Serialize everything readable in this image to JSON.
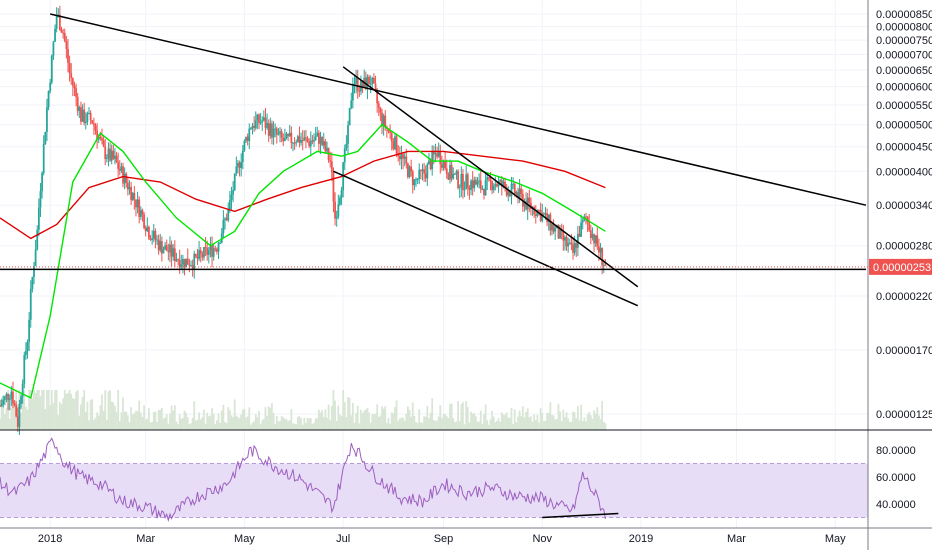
{
  "colors": {
    "up": "#26a69a",
    "down": "#ef5350",
    "ma_fast": "#00e600",
    "ma_slow": "#e00000",
    "trendline": "#000000",
    "rsi_line": "#9c5fbf",
    "rsi_band": "#e8ddf7",
    "rsi_band_edge": "#b39ddb",
    "price_badge": "#ef5350",
    "volume": "#d9e6d6",
    "volume_ma": "#f4b183",
    "grid": "#f0f3fa",
    "axis_text": "#131722",
    "separator": "#131722"
  },
  "chart_data": [
    {
      "type": "candlestick",
      "title": "",
      "y_scale": "log",
      "y_ticks": [
        "0.00000850",
        "0.00000800",
        "0.00000750",
        "0.00000700",
        "0.00000650",
        "0.00000600",
        "0.00000550",
        "0.00000500",
        "0.00000450",
        "0.00000400",
        "0.00000340",
        "0.00000280",
        "0.00000220",
        "0.00000170",
        "0.00000125"
      ],
      "y_tick_values": [
        8.5e-06,
        8e-06,
        7.5e-06,
        7e-06,
        6.5e-06,
        6e-06,
        5.5e-06,
        5e-06,
        4.5e-06,
        4e-06,
        3.4e-06,
        2.8e-06,
        2.2e-06,
        1.7e-06,
        1.25e-06
      ],
      "x_ticks": [
        "2018",
        "Mar",
        "May",
        "Jul",
        "Sep",
        "Nov",
        "2019",
        "Mar",
        "May"
      ],
      "x_tick_dates": [
        "2018-01-01",
        "2018-03-01",
        "2018-05-01",
        "2018-07-01",
        "2018-09-01",
        "2018-11-01",
        "2019-01-01",
        "2019-03-01",
        "2019-05-01"
      ],
      "last_price": "0.00000253",
      "last_price_value": 2.53e-06,
      "date_range": [
        "2017-12-01",
        "2018-12-10"
      ],
      "price_path": [
        [
          "2017-12-01",
          1.3e-06
        ],
        [
          "2017-12-08",
          1.4e-06
        ],
        [
          "2017-12-12",
          1.2e-06
        ],
        [
          "2017-12-18",
          1.8e-06
        ],
        [
          "2017-12-24",
          3e-06
        ],
        [
          "2017-12-28",
          4.5e-06
        ],
        [
          "2018-01-02",
          6.8e-06
        ],
        [
          "2018-01-05",
          8.5e-06
        ],
        [
          "2018-01-09",
          7.8e-06
        ],
        [
          "2018-01-13",
          6.4e-06
        ],
        [
          "2018-01-20",
          5.2e-06
        ],
        [
          "2018-01-27",
          5.1e-06
        ],
        [
          "2018-02-03",
          4.4e-06
        ],
        [
          "2018-02-10",
          4.2e-06
        ],
        [
          "2018-02-17",
          3.8e-06
        ],
        [
          "2018-02-24",
          3.4e-06
        ],
        [
          "2018-03-03",
          3e-06
        ],
        [
          "2018-03-10",
          2.8e-06
        ],
        [
          "2018-03-17",
          2.7e-06
        ],
        [
          "2018-03-24",
          2.6e-06
        ],
        [
          "2018-03-31",
          2.6e-06
        ],
        [
          "2018-04-07",
          2.7e-06
        ],
        [
          "2018-04-14",
          2.8e-06
        ],
        [
          "2018-04-21",
          3.3e-06
        ],
        [
          "2018-04-28",
          4.2e-06
        ],
        [
          "2018-05-05",
          5e-06
        ],
        [
          "2018-05-12",
          5.1e-06
        ],
        [
          "2018-05-19",
          4.8e-06
        ],
        [
          "2018-05-26",
          4.6e-06
        ],
        [
          "2018-06-02",
          4.7e-06
        ],
        [
          "2018-06-09",
          4.6e-06
        ],
        [
          "2018-06-16",
          4.7e-06
        ],
        [
          "2018-06-23",
          4.2e-06
        ],
        [
          "2018-06-26",
          3.2e-06
        ],
        [
          "2018-06-30",
          3.8e-06
        ],
        [
          "2018-07-04",
          4.8e-06
        ],
        [
          "2018-07-07",
          6.2e-06
        ],
        [
          "2018-07-12",
          6e-06
        ],
        [
          "2018-07-18",
          6.2e-06
        ],
        [
          "2018-07-24",
          5.2e-06
        ],
        [
          "2018-07-31",
          4.7e-06
        ],
        [
          "2018-08-07",
          4.2e-06
        ],
        [
          "2018-08-14",
          3.8e-06
        ],
        [
          "2018-08-21",
          4e-06
        ],
        [
          "2018-08-28",
          4.4e-06
        ],
        [
          "2018-09-04",
          4e-06
        ],
        [
          "2018-09-11",
          3.8e-06
        ],
        [
          "2018-09-18",
          3.8e-06
        ],
        [
          "2018-09-25",
          3.7e-06
        ],
        [
          "2018-10-02",
          3.8e-06
        ],
        [
          "2018-10-09",
          3.7e-06
        ],
        [
          "2018-10-16",
          3.6e-06
        ],
        [
          "2018-10-23",
          3.4e-06
        ],
        [
          "2018-10-30",
          3.3e-06
        ],
        [
          "2018-11-06",
          3.1e-06
        ],
        [
          "2018-11-13",
          2.9e-06
        ],
        [
          "2018-11-20",
          2.7e-06
        ],
        [
          "2018-11-24",
          3e-06
        ],
        [
          "2018-11-28",
          3.2e-06
        ],
        [
          "2018-12-03",
          2.9e-06
        ],
        [
          "2018-12-10",
          2.53e-06
        ]
      ],
      "ma_fast_path": [
        [
          "2017-12-01",
          1.45e-06
        ],
        [
          "2017-12-20",
          1.35e-06
        ],
        [
          "2018-01-01",
          2e-06
        ],
        [
          "2018-01-15",
          3.8e-06
        ],
        [
          "2018-02-01",
          4.8e-06
        ],
        [
          "2018-02-15",
          4.4e-06
        ],
        [
          "2018-03-01",
          3.8e-06
        ],
        [
          "2018-03-20",
          3.2e-06
        ],
        [
          "2018-04-10",
          2.8e-06
        ],
        [
          "2018-04-25",
          3e-06
        ],
        [
          "2018-05-10",
          3.6e-06
        ],
        [
          "2018-05-25",
          4e-06
        ],
        [
          "2018-06-15",
          4.4e-06
        ],
        [
          "2018-06-30",
          4.3e-06
        ],
        [
          "2018-07-10",
          4.4e-06
        ],
        [
          "2018-07-25",
          5e-06
        ],
        [
          "2018-08-10",
          4.6e-06
        ],
        [
          "2018-08-25",
          4.2e-06
        ],
        [
          "2018-09-10",
          4.2e-06
        ],
        [
          "2018-09-25",
          4e-06
        ],
        [
          "2018-10-15",
          3.8e-06
        ],
        [
          "2018-11-01",
          3.6e-06
        ],
        [
          "2018-11-20",
          3.3e-06
        ],
        [
          "2018-12-10",
          3e-06
        ]
      ],
      "ma_slow_path": [
        [
          "2017-12-01",
          3.2e-06
        ],
        [
          "2017-12-20",
          2.9e-06
        ],
        [
          "2018-01-05",
          3.1e-06
        ],
        [
          "2018-01-25",
          3.7e-06
        ],
        [
          "2018-02-15",
          3.9e-06
        ],
        [
          "2018-03-10",
          3.8e-06
        ],
        [
          "2018-04-01",
          3.5e-06
        ],
        [
          "2018-04-25",
          3.3e-06
        ],
        [
          "2018-05-15",
          3.5e-06
        ],
        [
          "2018-06-05",
          3.7e-06
        ],
        [
          "2018-06-30",
          3.9e-06
        ],
        [
          "2018-07-20",
          4.2e-06
        ],
        [
          "2018-08-10",
          4.4e-06
        ],
        [
          "2018-09-01",
          4.4e-06
        ],
        [
          "2018-09-25",
          4.3e-06
        ],
        [
          "2018-10-20",
          4.2e-06
        ],
        [
          "2018-11-15",
          4e-06
        ],
        [
          "2018-12-10",
          3.7e-06
        ]
      ],
      "trendlines": [
        {
          "from": [
            "2018-01-01",
            8.5e-06
          ],
          "to": [
            "2019-05-20",
            3.4e-06
          ]
        },
        {
          "from": [
            "2018-07-01",
            6.6e-06
          ],
          "to": [
            "2018-12-30",
            2.3e-06
          ]
        },
        {
          "from": [
            "2018-06-25",
            4e-06
          ],
          "to": [
            "2018-12-30",
            2.1e-06
          ]
        },
        {
          "from": [
            "2017-12-01",
            2.5e-06
          ],
          "to": [
            "2019-05-20",
            2.5e-06
          ]
        }
      ]
    },
    {
      "type": "line",
      "title": "",
      "ylim": [
        25,
        95
      ],
      "y_ticks": [
        "80.0000",
        "60.0000",
        "40.0000"
      ],
      "y_tick_values": [
        80,
        60,
        40
      ],
      "band": [
        30,
        70
      ],
      "x_ticks": [
        "2018",
        "Mar",
        "May",
        "Jul",
        "Sep",
        "Nov",
        "2019",
        "Mar",
        "May"
      ],
      "rsi_path": [
        [
          "2017-12-01",
          55
        ],
        [
          "2017-12-10",
          48
        ],
        [
          "2017-12-20",
          58
        ],
        [
          "2017-12-28",
          75
        ],
        [
          "2018-01-03",
          88
        ],
        [
          "2018-01-10",
          70
        ],
        [
          "2018-01-20",
          60
        ],
        [
          "2018-02-01",
          55
        ],
        [
          "2018-02-15",
          42
        ],
        [
          "2018-03-01",
          38
        ],
        [
          "2018-03-15",
          30
        ],
        [
          "2018-04-01",
          45
        ],
        [
          "2018-04-20",
          55
        ],
        [
          "2018-05-05",
          80
        ],
        [
          "2018-05-20",
          68
        ],
        [
          "2018-06-05",
          58
        ],
        [
          "2018-06-25",
          38
        ],
        [
          "2018-07-06",
          85
        ],
        [
          "2018-07-20",
          62
        ],
        [
          "2018-08-05",
          45
        ],
        [
          "2018-08-20",
          42
        ],
        [
          "2018-09-01",
          55
        ],
        [
          "2018-09-15",
          48
        ],
        [
          "2018-10-01",
          52
        ],
        [
          "2018-10-15",
          46
        ],
        [
          "2018-11-01",
          44
        ],
        [
          "2018-11-12",
          38
        ],
        [
          "2018-11-20",
          35
        ],
        [
          "2018-11-26",
          62
        ],
        [
          "2018-12-03",
          48
        ],
        [
          "2018-12-10",
          33
        ]
      ],
      "trendlines": [
        {
          "from": [
            "2018-11-01",
            30
          ],
          "to": [
            "2018-12-18",
            33
          ]
        }
      ]
    }
  ]
}
